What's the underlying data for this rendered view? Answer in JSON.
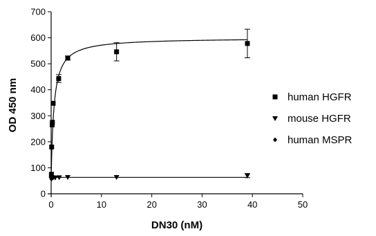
{
  "chart_data": {
    "type": "scatter",
    "title": "",
    "xlabel": "DN30 (nM)",
    "ylabel": "OD 450 nm",
    "xlim": [
      0,
      50
    ],
    "ylim": [
      0,
      700
    ],
    "xticks": [
      0,
      10,
      20,
      30,
      40,
      50
    ],
    "yticks": [
      0,
      100,
      200,
      300,
      400,
      500,
      600,
      700
    ],
    "xtick_labels": [
      "0",
      "10",
      "20",
      "30",
      "40",
      "50"
    ],
    "ytick_labels": [
      "0",
      "100",
      "200",
      "300",
      "400",
      "500",
      "600",
      "700"
    ],
    "grid": false,
    "legend_position": "right",
    "series": [
      {
        "name": "human HGFR",
        "marker": "square",
        "color": "#000000",
        "points": [
          {
            "x": 0.05,
            "y": 75
          },
          {
            "x": 0.1,
            "y": 180
          },
          {
            "x": 0.2,
            "y": 265
          },
          {
            "x": 0.25,
            "y": 275
          },
          {
            "x": 0.4,
            "y": 348
          },
          {
            "x": 1.5,
            "y": 443,
            "err": 15
          },
          {
            "x": 3.3,
            "y": 522,
            "err": 8
          },
          {
            "x": 13,
            "y": 546,
            "err": 35
          },
          {
            "x": 39,
            "y": 578,
            "err": 55
          }
        ],
        "fit": {
          "model": "saturation",
          "bmax": 545,
          "kd": 0.55,
          "baseline": 55
        }
      },
      {
        "name": "mouse HGFR",
        "marker": "triangle-down",
        "color": "#000000",
        "points": [
          {
            "x": 0.05,
            "y": 57
          },
          {
            "x": 0.1,
            "y": 60
          },
          {
            "x": 0.2,
            "y": 62
          },
          {
            "x": 0.4,
            "y": 63
          },
          {
            "x": 0.8,
            "y": 62
          },
          {
            "x": 1.6,
            "y": 63
          },
          {
            "x": 3.3,
            "y": 64
          },
          {
            "x": 13,
            "y": 64
          },
          {
            "x": 39,
            "y": 70,
            "err": 8
          }
        ],
        "fit": {
          "model": "flat",
          "y": 63
        }
      },
      {
        "name": "human MSPR",
        "marker": "diamond",
        "color": "#000000",
        "points": [
          {
            "x": 0.05,
            "y": 58
          },
          {
            "x": 0.1,
            "y": 60
          },
          {
            "x": 0.2,
            "y": 60
          }
        ]
      }
    ]
  }
}
